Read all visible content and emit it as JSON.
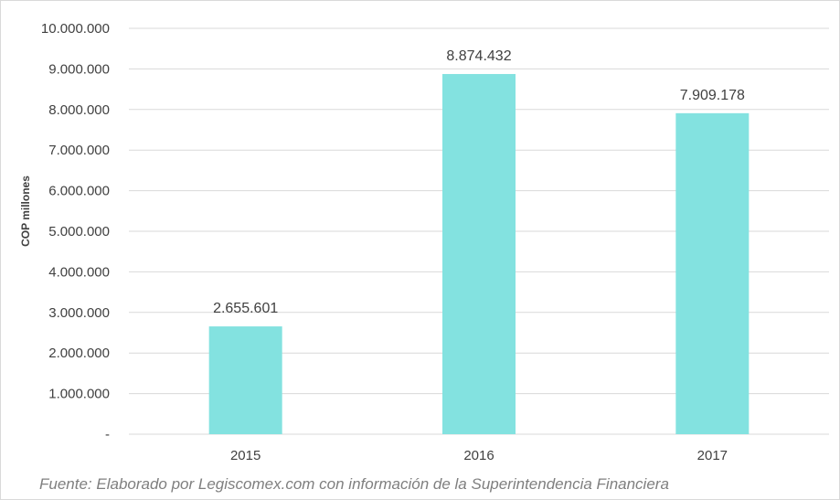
{
  "chart_data": {
    "type": "bar",
    "categories": [
      "2015",
      "2016",
      "2017"
    ],
    "values": [
      2655601,
      8874432,
      7909178
    ],
    "data_labels": [
      "2.655.601",
      "8.874.432",
      "7.909.178"
    ],
    "title": "",
    "xlabel": "",
    "ylabel": "COP millones",
    "ylim": [
      0,
      10000000
    ],
    "y_ticks": [
      0,
      1000000,
      2000000,
      3000000,
      4000000,
      5000000,
      6000000,
      7000000,
      8000000,
      9000000,
      10000000
    ],
    "y_tick_labels": [
      "-",
      "1.000.000",
      "2.000.000",
      "3.000.000",
      "4.000.000",
      "5.000.000",
      "6.000.000",
      "7.000.000",
      "8.000.000",
      "9.000.000",
      "10.000.000"
    ],
    "grid": true,
    "legend": "none",
    "bar_color": "#83e2e0",
    "grid_color": "#d9d9d9"
  },
  "source_note": "Fuente: Elaborado por Legiscomex.com con información de la Superintendencia Financiera"
}
